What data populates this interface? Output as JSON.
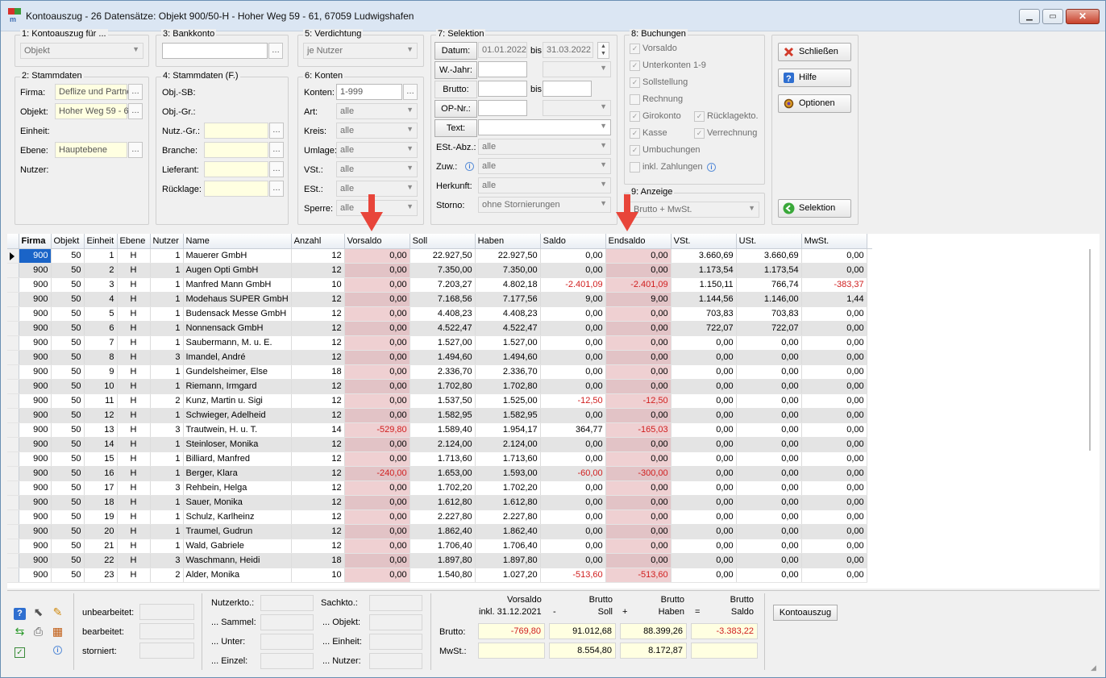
{
  "window": {
    "title": "Kontoauszug - 26 Datensätze: Objekt 900/50-H - Hoher Weg 59 - 61, 67059 Ludwigshafen",
    "min_icon": "minimize-icon",
    "max_icon": "maximize-icon",
    "close_icon": "close-icon"
  },
  "g1": {
    "title": "1: Kontoauszug für ...",
    "value": "Objekt"
  },
  "g2": {
    "title": "2: Stammdaten",
    "firma_label": "Firma:",
    "firma_value": "Deflize und Partne",
    "objekt_label": "Objekt:",
    "objekt_value": "Hoher Weg 59 - 6",
    "einheit_label": "Einheit:",
    "ebene_label": "Ebene:",
    "ebene_value": "Hauptebene",
    "nutzer_label": "Nutzer:"
  },
  "g3": {
    "title": "3: Bankkonto"
  },
  "g4": {
    "title": "4: Stammdaten (F.)",
    "objsb": "Obj.-SB:",
    "objgr": "Obj.-Gr.:",
    "nutzgr": "Nutz.-Gr.:",
    "branche": "Branche:",
    "lieferant": "Lieferant:",
    "ruecklage": "Rücklage:"
  },
  "g5": {
    "title": "5: Verdichtung",
    "value": "je Nutzer"
  },
  "g6": {
    "title": "6: Konten",
    "konten_label": "Konten:",
    "konten_value": "1-999",
    "art_label": "Art:",
    "art_value": "alle",
    "kreis_label": "Kreis:",
    "kreis_value": "alle",
    "umlage_label": "Umlage:",
    "umlage_value": "alle",
    "vst_label": "VSt.:",
    "vst_value": "alle",
    "est_label": "ESt.:",
    "est_value": "alle",
    "sperre_label": "Sperre:",
    "sperre_value": "alle"
  },
  "g7": {
    "title": "7: Selektion",
    "datum_btn": "Datum:",
    "date_from": "01.01.2022",
    "bis1": "bis",
    "date_to": "31.03.2022",
    "wjahr_btn": "W.-Jahr:",
    "brutto_btn": "Brutto:",
    "bis2": "bis",
    "opnr_btn": "OP-Nr.:",
    "text_btn": "Text:",
    "estabz_label": "ESt.-Abz.:",
    "estabz_value": "alle",
    "zuw_label": "Zuw.:",
    "zuw_value": "alle",
    "herkunft_label": "Herkunft:",
    "herkunft_value": "alle",
    "storno_label": "Storno:",
    "storno_value": "ohne Stornierungen"
  },
  "g8": {
    "title": "8: Buchungen",
    "vorsaldo": "Vorsaldo",
    "unterkonten": "Unterkonten 1-9",
    "sollstellung": "Sollstellung",
    "rechnung": "Rechnung",
    "girokonto": "Girokonto",
    "ruecklagekto": "Rücklagekto.",
    "kasse": "Kasse",
    "verrechnung": "Verrechnung",
    "umbuchungen": "Umbuchungen",
    "inkl_zahlungen": "inkl. Zahlungen"
  },
  "g9": {
    "title": "9: Anzeige",
    "value": "Brutto + MwSt."
  },
  "buttons": {
    "schliessen": "Schließen",
    "hilfe": "Hilfe",
    "optionen": "Optionen",
    "selektion": "Selektion",
    "kontoauszug": "Kontoauszug"
  },
  "grid": {
    "headers": [
      "Firma",
      "Objekt",
      "Einheit",
      "Ebene",
      "Nutzer",
      "Name",
      "Anzahl",
      "Vorsaldo",
      "Soll",
      "Haben",
      "Saldo",
      "Endsaldo",
      "VSt.",
      "USt.",
      "MwSt."
    ],
    "rows": [
      [
        "900",
        "50",
        "1",
        "H",
        "1",
        "Mauerer GmbH",
        "12",
        "0,00",
        "22.927,50",
        "22.927,50",
        "0,00",
        "0,00",
        "3.660,69",
        "3.660,69",
        "0,00"
      ],
      [
        "900",
        "50",
        "2",
        "H",
        "1",
        "Augen Opti GmbH",
        "12",
        "0,00",
        "7.350,00",
        "7.350,00",
        "0,00",
        "0,00",
        "1.173,54",
        "1.173,54",
        "0,00"
      ],
      [
        "900",
        "50",
        "3",
        "H",
        "1",
        "Manfred Mann GmbH",
        "10",
        "0,00",
        "7.203,27",
        "4.802,18",
        "-2.401,09",
        "-2.401,09",
        "1.150,11",
        "766,74",
        "-383,37"
      ],
      [
        "900",
        "50",
        "4",
        "H",
        "1",
        "Modehaus SUPER GmbH",
        "12",
        "0,00",
        "7.168,56",
        "7.177,56",
        "9,00",
        "9,00",
        "1.144,56",
        "1.146,00",
        "1,44"
      ],
      [
        "900",
        "50",
        "5",
        "H",
        "1",
        "Budensack Messe GmbH",
        "12",
        "0,00",
        "4.408,23",
        "4.408,23",
        "0,00",
        "0,00",
        "703,83",
        "703,83",
        "0,00"
      ],
      [
        "900",
        "50",
        "6",
        "H",
        "1",
        "Nonnensack GmbH",
        "12",
        "0,00",
        "4.522,47",
        "4.522,47",
        "0,00",
        "0,00",
        "722,07",
        "722,07",
        "0,00"
      ],
      [
        "900",
        "50",
        "7",
        "H",
        "1",
        "Saubermann, M. u. E.",
        "12",
        "0,00",
        "1.527,00",
        "1.527,00",
        "0,00",
        "0,00",
        "0,00",
        "0,00",
        "0,00"
      ],
      [
        "900",
        "50",
        "8",
        "H",
        "3",
        "Imandel, André",
        "12",
        "0,00",
        "1.494,60",
        "1.494,60",
        "0,00",
        "0,00",
        "0,00",
        "0,00",
        "0,00"
      ],
      [
        "900",
        "50",
        "9",
        "H",
        "1",
        "Gundelsheimer, Else",
        "18",
        "0,00",
        "2.336,70",
        "2.336,70",
        "0,00",
        "0,00",
        "0,00",
        "0,00",
        "0,00"
      ],
      [
        "900",
        "50",
        "10",
        "H",
        "1",
        "Riemann, Irmgard",
        "12",
        "0,00",
        "1.702,80",
        "1.702,80",
        "0,00",
        "0,00",
        "0,00",
        "0,00",
        "0,00"
      ],
      [
        "900",
        "50",
        "11",
        "H",
        "2",
        "Kunz, Martin u. Sigi",
        "12",
        "0,00",
        "1.537,50",
        "1.525,00",
        "-12,50",
        "-12,50",
        "0,00",
        "0,00",
        "0,00"
      ],
      [
        "900",
        "50",
        "12",
        "H",
        "1",
        "Schwieger, Adelheid",
        "12",
        "0,00",
        "1.582,95",
        "1.582,95",
        "0,00",
        "0,00",
        "0,00",
        "0,00",
        "0,00"
      ],
      [
        "900",
        "50",
        "13",
        "H",
        "3",
        "Trautwein, H. u. T.",
        "14",
        "-529,80",
        "1.589,40",
        "1.954,17",
        "364,77",
        "-165,03",
        "0,00",
        "0,00",
        "0,00"
      ],
      [
        "900",
        "50",
        "14",
        "H",
        "1",
        "Steinloser, Monika",
        "12",
        "0,00",
        "2.124,00",
        "2.124,00",
        "0,00",
        "0,00",
        "0,00",
        "0,00",
        "0,00"
      ],
      [
        "900",
        "50",
        "15",
        "H",
        "1",
        "Billiard, Manfred",
        "12",
        "0,00",
        "1.713,60",
        "1.713,60",
        "0,00",
        "0,00",
        "0,00",
        "0,00",
        "0,00"
      ],
      [
        "900",
        "50",
        "16",
        "H",
        "1",
        "Berger, Klara",
        "12",
        "-240,00",
        "1.653,00",
        "1.593,00",
        "-60,00",
        "-300,00",
        "0,00",
        "0,00",
        "0,00"
      ],
      [
        "900",
        "50",
        "17",
        "H",
        "3",
        "Rehbein, Helga",
        "12",
        "0,00",
        "1.702,20",
        "1.702,20",
        "0,00",
        "0,00",
        "0,00",
        "0,00",
        "0,00"
      ],
      [
        "900",
        "50",
        "18",
        "H",
        "1",
        "Sauer, Monika",
        "12",
        "0,00",
        "1.612,80",
        "1.612,80",
        "0,00",
        "0,00",
        "0,00",
        "0,00",
        "0,00"
      ],
      [
        "900",
        "50",
        "19",
        "H",
        "1",
        "Schulz, Karlheinz",
        "12",
        "0,00",
        "2.227,80",
        "2.227,80",
        "0,00",
        "0,00",
        "0,00",
        "0,00",
        "0,00"
      ],
      [
        "900",
        "50",
        "20",
        "H",
        "1",
        "Traumel, Gudrun",
        "12",
        "0,00",
        "1.862,40",
        "1.862,40",
        "0,00",
        "0,00",
        "0,00",
        "0,00",
        "0,00"
      ],
      [
        "900",
        "50",
        "21",
        "H",
        "1",
        "Wald, Gabriele",
        "12",
        "0,00",
        "1.706,40",
        "1.706,40",
        "0,00",
        "0,00",
        "0,00",
        "0,00",
        "0,00"
      ],
      [
        "900",
        "50",
        "22",
        "H",
        "3",
        "Waschmann, Heidi",
        "18",
        "0,00",
        "1.897,80",
        "1.897,80",
        "0,00",
        "0,00",
        "0,00",
        "0,00",
        "0,00"
      ],
      [
        "900",
        "50",
        "23",
        "H",
        "2",
        "Alder, Monika",
        "10",
        "0,00",
        "1.540,80",
        "1.027,20",
        "-513,60",
        "-513,60",
        "0,00",
        "0,00",
        "0,00"
      ]
    ]
  },
  "status": {
    "unbearbeitet": "unbearbeitet:",
    "bearbeitet": "bearbeitet:",
    "storniert": "storniert:",
    "nutzerkto": "Nutzerkto.:",
    "sammel": "... Sammel:",
    "unter": "... Unter:",
    "einzel": "... Einzel:",
    "sachkto": "Sachkto.:",
    "objekt": "... Objekt:",
    "einheit": "... Einheit:",
    "nutzer": "... Nutzer:"
  },
  "totals": {
    "vorsaldo_h1": "Vorsaldo",
    "vorsaldo_h2": "inkl. 31.12.2021",
    "minus": "-",
    "soll_h1": "Brutto",
    "soll_h2": "Soll",
    "plus": "+",
    "haben_h1": "Brutto",
    "haben_h2": "Haben",
    "eq": "=",
    "saldo_h1": "Brutto",
    "saldo_h2": "Saldo",
    "brutto_label": "Brutto:",
    "mwst_label": "MwSt.:",
    "brutto_vorsaldo": "-769,80",
    "brutto_soll": "91.012,68",
    "brutto_haben": "88.399,26",
    "brutto_saldo": "-3.383,22",
    "mwst_soll": "8.554,80",
    "mwst_haben": "8.172,87"
  },
  "colors": {
    "highlight": "#efd0d2",
    "negative": "#d01e1e",
    "selection": "#1a64c8",
    "arrow": "#e8453a"
  }
}
